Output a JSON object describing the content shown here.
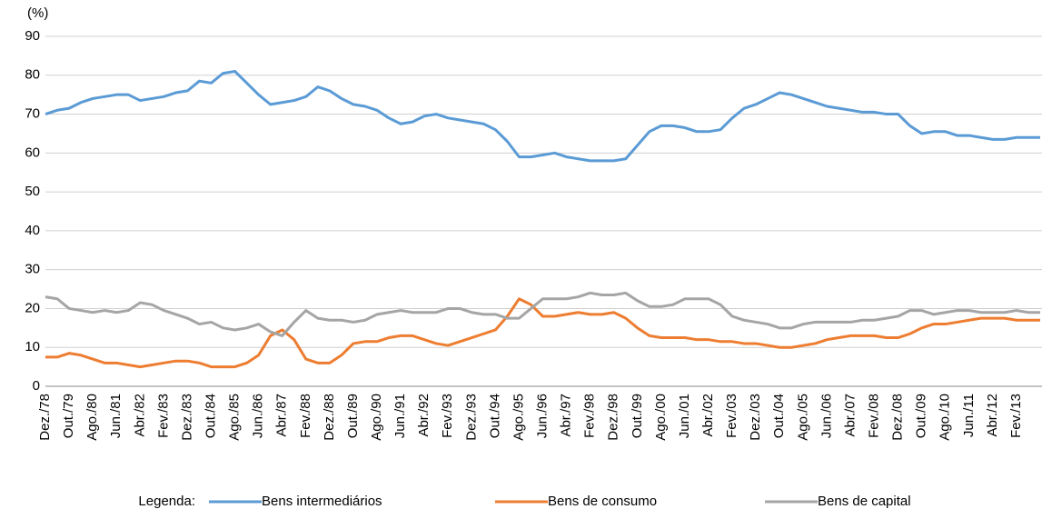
{
  "chart_data": {
    "type": "line",
    "y_label": "(%)",
    "legend_title": "Legenda:",
    "categories": [
      "Dez./78",
      null,
      "Out./79",
      null,
      "Ago./80",
      null,
      "Jun./81",
      null,
      "Abr./82",
      null,
      "Fev./83",
      null,
      "Dez./83",
      null,
      "Out./84",
      null,
      "Ago./85",
      null,
      "Jun./86",
      null,
      "Abr./87",
      null,
      "Fev./88",
      null,
      "Dez./88",
      null,
      "Out./89",
      null,
      "Ago./90",
      null,
      "Jun./91",
      null,
      "Abr./92",
      null,
      "Fev./93",
      null,
      "Dez./93",
      null,
      "Out./94",
      null,
      "Ago./95",
      null,
      "Jun./96",
      null,
      "Abr./97",
      null,
      "Fev./98",
      null,
      "Dez./98",
      null,
      "Out./99",
      null,
      "Ago./00",
      null,
      "Jun./01",
      null,
      "Abr./02",
      null,
      "Fev./03",
      null,
      "Dez./03",
      null,
      "Out./04",
      null,
      "Ago./05",
      null,
      "Jun./06",
      null,
      "Abr./07",
      null,
      "Fev./08",
      null,
      "Dez./08",
      null,
      "Out./09",
      null,
      "Ago./10",
      null,
      "Jun./11",
      null,
      "Abr./12",
      null,
      "Fev./13",
      null,
      null
    ],
    "series": [
      {
        "name": "Bens intermediários",
        "color": "#5b9bd5",
        "values": [
          70,
          71,
          71.5,
          73,
          74,
          74.5,
          75,
          75,
          73.5,
          74,
          74.5,
          75.5,
          76,
          78.5,
          78,
          80.5,
          81,
          78,
          75,
          72.5,
          73,
          73.5,
          74.5,
          77,
          76,
          74,
          72.5,
          72,
          71,
          69,
          67.5,
          68,
          69.5,
          70,
          69,
          68.5,
          68,
          67.5,
          66,
          63,
          59,
          59,
          59.5,
          60,
          59,
          58.5,
          58,
          58,
          58,
          58.5,
          62,
          65.5,
          67,
          67,
          66.5,
          65.5,
          65.5,
          66,
          69,
          71.5,
          72.5,
          74,
          75.5,
          75,
          74,
          73,
          72,
          71.5,
          71,
          70.5,
          70.5,
          70,
          70,
          67,
          65,
          65.5,
          65.5,
          64.5,
          64.5,
          64,
          63.5,
          63.5,
          64,
          64,
          64
        ]
      },
      {
        "name": "Bens de consumo",
        "color": "#ed7d31",
        "values": [
          7.5,
          7.5,
          8.5,
          8,
          7,
          6,
          6,
          5.5,
          5,
          5.5,
          6,
          6.5,
          6.5,
          6,
          5,
          5,
          5,
          6,
          8,
          13,
          14.5,
          12,
          7,
          6,
          6,
          8,
          11,
          11.5,
          11.5,
          12.5,
          13,
          13,
          12,
          11,
          10.5,
          11.5,
          12.5,
          13.5,
          14.5,
          18,
          22.5,
          21,
          18,
          18,
          18.5,
          19,
          18.5,
          18.5,
          19,
          17.5,
          15,
          13,
          12.5,
          12.5,
          12.5,
          12,
          12,
          11.5,
          11.5,
          11,
          11,
          10.5,
          10,
          10,
          10.5,
          11,
          12,
          12.5,
          13,
          13,
          13,
          12.5,
          12.5,
          13.5,
          15,
          16,
          16,
          16.5,
          17,
          17.5,
          17.5,
          17.5,
          17,
          17,
          17
        ]
      },
      {
        "name": "Bens de capital",
        "color": "#a5a5a5",
        "values": [
          23,
          22.5,
          20,
          19.5,
          19,
          19.5,
          19,
          19.5,
          21.5,
          21,
          19.5,
          18.5,
          17.5,
          16,
          16.5,
          15,
          14.5,
          15,
          16,
          14,
          13,
          16.5,
          19.5,
          17.5,
          17,
          17,
          16.5,
          17,
          18.5,
          19,
          19.5,
          19,
          19,
          19,
          20,
          20,
          19,
          18.5,
          18.5,
          17.5,
          17.5,
          20,
          22.5,
          22.5,
          22.5,
          23,
          24,
          23.5,
          23.5,
          24,
          22,
          20.5,
          20.5,
          21,
          22.5,
          22.5,
          22.5,
          21,
          18,
          17,
          16.5,
          16,
          15,
          15,
          16,
          16.5,
          16.5,
          16.5,
          16.5,
          17,
          17,
          17.5,
          18,
          19.5,
          19.5,
          18.5,
          19,
          19.5,
          19.5,
          19,
          19,
          19,
          19.5,
          19,
          19
        ]
      }
    ],
    "ylim": [
      0,
      90
    ],
    "yticks": [
      0,
      10,
      20,
      30,
      40,
      50,
      60,
      70,
      80,
      90
    ],
    "grid": true
  }
}
